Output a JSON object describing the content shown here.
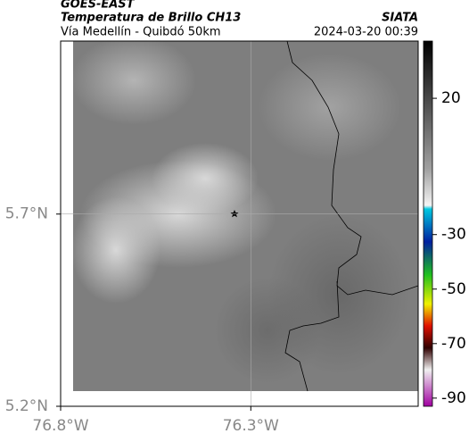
{
  "header": {
    "title": "GOES-EAST",
    "subtitle": "Temperatura de Brillo CH13",
    "region": "Vía Medellín - Quibdó 50km",
    "source": "SIATA",
    "timestamp": "2024-03-20 00:39"
  },
  "map": {
    "lonlim": [
      -76.8,
      -75.86
    ],
    "latlim": [
      5.2,
      6.15
    ],
    "xticks": [
      {
        "value": -76.8,
        "label": "76.8°W"
      },
      {
        "value": -76.3,
        "label": "76.3°W"
      }
    ],
    "yticks": [
      {
        "value": 5.2,
        "label": "5.2°N"
      },
      {
        "value": 5.7,
        "label": "5.7°N"
      }
    ],
    "colorbar": {
      "lim": [
        -93,
        41
      ],
      "ticks": [
        20,
        -30,
        -50,
        -70,
        -90
      ]
    }
  }
}
